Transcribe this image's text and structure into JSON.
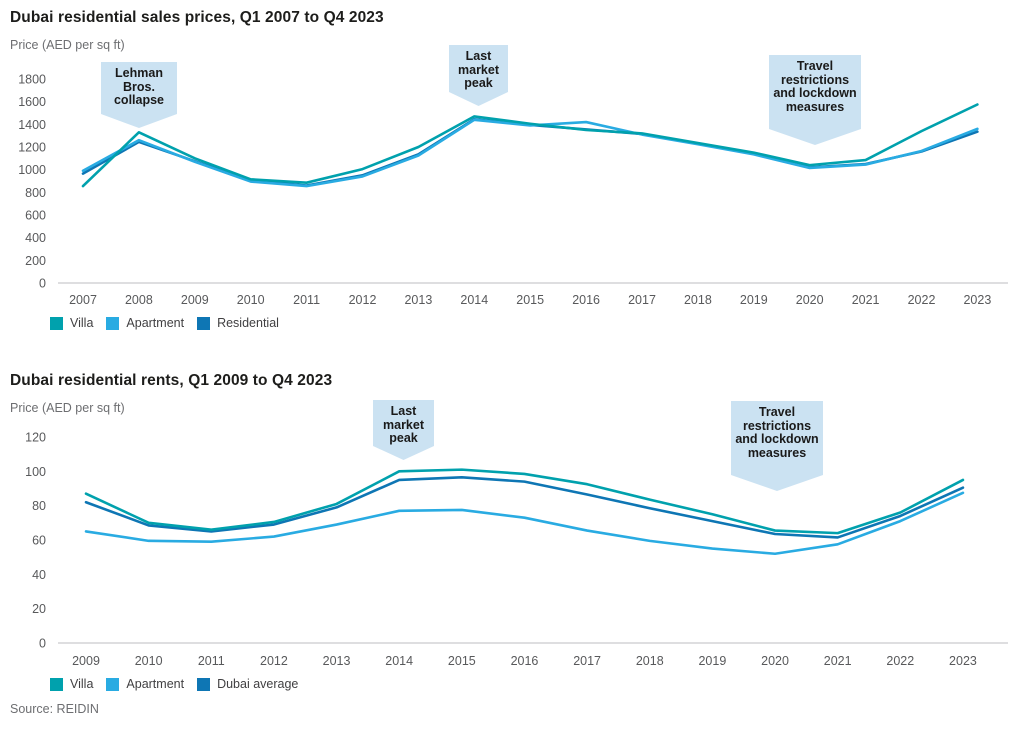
{
  "page": {
    "source": "Source: REIDIN"
  },
  "chart_data": [
    {
      "type": "line",
      "title": "Dubai residential sales prices, Q1 2007 to Q4 2023",
      "ylabel": "Price (AED per sq ft)",
      "x": [
        2007,
        2008,
        2009,
        2010,
        2011,
        2012,
        2013,
        2014,
        2015,
        2016,
        2017,
        2018,
        2019,
        2020,
        2021,
        2022,
        2023
      ],
      "ylim": [
        0,
        1800
      ],
      "ytick_step": 200,
      "grid": false,
      "legend_position": "bottom-left",
      "series": [
        {
          "name": "Villa",
          "color": "#00a1ad",
          "values": [
            855,
            1330,
            1100,
            915,
            885,
            1005,
            1200,
            1470,
            1405,
            1350,
            1320,
            1235,
            1150,
            1040,
            1085,
            1340,
            1575
          ]
        },
        {
          "name": "Apartment",
          "color": "#29abe2",
          "values": [
            990,
            1260,
            1070,
            895,
            855,
            940,
            1125,
            1440,
            1390,
            1420,
            1310,
            1225,
            1135,
            1015,
            1045,
            1165,
            1360
          ]
        },
        {
          "name": "Residential",
          "color": "#0e76b4",
          "values": [
            965,
            1245,
            1075,
            905,
            860,
            950,
            1135,
            1445,
            1395,
            1355,
            1315,
            1230,
            1140,
            1020,
            1050,
            1160,
            1335
          ]
        }
      ],
      "annotations": [
        {
          "id": "lehman",
          "text": "Lehman Bros. collapse"
        },
        {
          "id": "peak-1",
          "text": "Last market peak"
        },
        {
          "id": "travel-1",
          "text": "Travel restrictions and lockdown measures"
        }
      ]
    },
    {
      "type": "line",
      "title": "Dubai residential rents, Q1 2009 to Q4 2023",
      "ylabel": "Price (AED per sq ft)",
      "x": [
        2009,
        2010,
        2011,
        2012,
        2013,
        2014,
        2015,
        2016,
        2017,
        2018,
        2019,
        2020,
        2021,
        2022,
        2023
      ],
      "ylim": [
        0,
        120
      ],
      "ytick_step": 20,
      "grid": false,
      "legend_position": "bottom-left",
      "series": [
        {
          "name": "Villa",
          "color": "#00a1ad",
          "values": [
            87,
            70,
            66,
            70.5,
            81,
            100,
            101,
            98.5,
            92.5,
            83.5,
            75,
            65.5,
            64,
            76,
            95
          ]
        },
        {
          "name": "Apartment",
          "color": "#29abe2",
          "values": [
            65,
            59.5,
            59,
            62,
            69,
            77,
            77.5,
            73,
            65.5,
            59.5,
            55,
            52,
            57.5,
            71,
            87.5
          ]
        },
        {
          "name": "Dubai average",
          "color": "#0e76b4",
          "values": [
            82,
            68.5,
            65,
            69,
            79,
            95,
            96.5,
            94,
            86.5,
            78.5,
            71,
            63.5,
            61.5,
            74,
            90.5
          ]
        }
      ],
      "annotations": [
        {
          "id": "peak-2",
          "text": "Last market peak"
        },
        {
          "id": "travel-2",
          "text": "Travel restrictions and lockdown measures"
        }
      ]
    }
  ]
}
